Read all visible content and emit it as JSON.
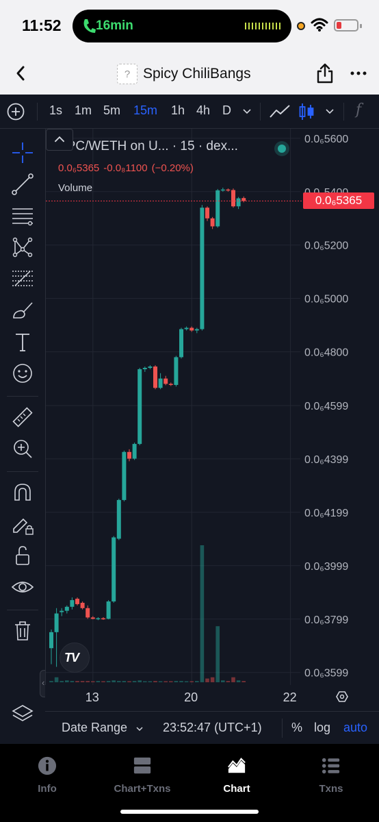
{
  "status_bar": {
    "time": "11:52",
    "call_duration": "16min",
    "colors": {
      "call_green": "#3ddc6f",
      "battery_low": "#e5393e"
    }
  },
  "nav": {
    "title": "Spicy ChiliBangs",
    "token_icon_glyph": "?"
  },
  "toolbar": {
    "intervals": [
      {
        "label": "1s",
        "active": false
      },
      {
        "label": "1m",
        "active": false
      },
      {
        "label": "5m",
        "active": false
      },
      {
        "label": "15m",
        "active": true
      },
      {
        "label": "1h",
        "active": false
      },
      {
        "label": "4h",
        "active": false
      },
      {
        "label": "D",
        "active": false
      }
    ],
    "fx_label": "f",
    "icons": [
      "plus-circle-icon",
      "chevron-down-icon",
      "line-chart-icon",
      "candlestick-icon",
      "fx-icon"
    ]
  },
  "left_tools": {
    "icons": [
      "crosshair-icon",
      "trend-line-icon",
      "horizontal-lines-icon",
      "pattern-icon",
      "fib-icon",
      "brush-icon",
      "text-icon",
      "emoji-icon",
      "ruler-icon",
      "zoom-in-icon",
      "magnet-icon",
      "lock-drawing-icon",
      "unlock-icon",
      "eye-icon",
      "trash-icon",
      "layers-icon"
    ]
  },
  "legend": {
    "symbol": "SPC/WETH on U... · 15 · dex...",
    "last_price": "0.0₆5365",
    "change": "-0.0₈1100",
    "change_pct": "(−0.20%)",
    "volume_label": "Volume"
  },
  "price_tag": "0.0₆5365",
  "bottom_bar": {
    "date_range": "Date Range",
    "clock": "23:52:47 (UTC+1)",
    "percent": "%",
    "log": "log",
    "auto": "auto"
  },
  "tabs": [
    {
      "label": "Info",
      "active": false
    },
    {
      "label": "Chart+Txns",
      "active": false
    },
    {
      "label": "Chart",
      "active": true
    },
    {
      "label": "Txns",
      "active": false
    }
  ],
  "colors": {
    "bg": "#131722",
    "up": "#26a69a",
    "down": "#ef5350",
    "accent": "#2962ff",
    "price_line": "#f23645"
  },
  "chart_data": {
    "type": "candlestick",
    "title": "SPC/WETH on U... · 15 · dex...",
    "price_scale_unit": "×1e-7",
    "y_ticks": [
      {
        "label": "0.0₆5600",
        "value": 5600
      },
      {
        "label": "0.0₆5400",
        "value": 5400
      },
      {
        "label": "0.0₆5200",
        "value": 5200
      },
      {
        "label": "0.0₆5000",
        "value": 5000
      },
      {
        "label": "0.0₆4800",
        "value": 4800
      },
      {
        "label": "0.0₆4599",
        "value": 4599
      },
      {
        "label": "0.0₆4399",
        "value": 4399
      },
      {
        "label": "0.0₆4199",
        "value": 4199
      },
      {
        "label": "0.0₆3999",
        "value": 3999
      },
      {
        "label": "0.0₆3799",
        "value": 3799
      },
      {
        "label": "0.0₆3599",
        "value": 3599
      }
    ],
    "x_ticks": [
      "13",
      "20",
      "22"
    ],
    "x_tick_index": [
      8,
      27,
      46
    ],
    "ylim": [
      3570,
      5615
    ],
    "last_price": 5365,
    "candles": [
      {
        "o": 3690,
        "h": 3760,
        "l": 3630,
        "c": 3750
      },
      {
        "o": 3750,
        "h": 3840,
        "l": 3620,
        "c": 3820
      },
      {
        "o": 3825,
        "h": 3840,
        "l": 3810,
        "c": 3830
      },
      {
        "o": 3830,
        "h": 3850,
        "l": 3820,
        "c": 3845
      },
      {
        "o": 3845,
        "h": 3880,
        "l": 3835,
        "c": 3870
      },
      {
        "o": 3875,
        "h": 3880,
        "l": 3850,
        "c": 3855
      },
      {
        "o": 3860,
        "h": 3865,
        "l": 3835,
        "c": 3840
      },
      {
        "o": 3840,
        "h": 3850,
        "l": 3800,
        "c": 3805
      },
      {
        "o": 3805,
        "h": 3810,
        "l": 3798,
        "c": 3800
      },
      {
        "o": 3800,
        "h": 3806,
        "l": 3795,
        "c": 3802
      },
      {
        "o": 3802,
        "h": 3806,
        "l": 3796,
        "c": 3800
      },
      {
        "o": 3800,
        "h": 3870,
        "l": 3798,
        "c": 3865
      },
      {
        "o": 3865,
        "h": 4110,
        "l": 3860,
        "c": 4105
      },
      {
        "o": 4100,
        "h": 4250,
        "l": 4095,
        "c": 4245
      },
      {
        "o": 4245,
        "h": 4430,
        "l": 4240,
        "c": 4425
      },
      {
        "o": 4425,
        "h": 4435,
        "l": 4390,
        "c": 4400
      },
      {
        "o": 4400,
        "h": 4460,
        "l": 4395,
        "c": 4455
      },
      {
        "o": 4455,
        "h": 4740,
        "l": 4450,
        "c": 4735
      },
      {
        "o": 4735,
        "h": 4745,
        "l": 4725,
        "c": 4740
      },
      {
        "o": 4740,
        "h": 4750,
        "l": 4735,
        "c": 4745
      },
      {
        "o": 4745,
        "h": 4750,
        "l": 4660,
        "c": 4665
      },
      {
        "o": 4665,
        "h": 4720,
        "l": 4660,
        "c": 4700
      },
      {
        "o": 4700,
        "h": 4710,
        "l": 4675,
        "c": 4680
      },
      {
        "o": 4680,
        "h": 4685,
        "l": 4672,
        "c": 4676
      },
      {
        "o": 4676,
        "h": 4785,
        "l": 4670,
        "c": 4780
      },
      {
        "o": 4780,
        "h": 4890,
        "l": 4775,
        "c": 4885
      },
      {
        "o": 4885,
        "h": 4895,
        "l": 4880,
        "c": 4890
      },
      {
        "o": 4890,
        "h": 4895,
        "l": 4875,
        "c": 4880
      },
      {
        "o": 4880,
        "h": 4890,
        "l": 4870,
        "c": 4885
      },
      {
        "o": 4885,
        "h": 5350,
        "l": 4880,
        "c": 5340
      },
      {
        "o": 5340,
        "h": 5345,
        "l": 5290,
        "c": 5300
      },
      {
        "o": 5300,
        "h": 5305,
        "l": 5260,
        "c": 5270
      },
      {
        "o": 5270,
        "h": 5410,
        "l": 5265,
        "c": 5405
      },
      {
        "o": 5405,
        "h": 5415,
        "l": 5400,
        "c": 5408
      },
      {
        "o": 5408,
        "h": 5412,
        "l": 5400,
        "c": 5406
      },
      {
        "o": 5406,
        "h": 5412,
        "l": 5340,
        "c": 5345
      },
      {
        "o": 5345,
        "h": 5380,
        "l": 5335,
        "c": 5375
      },
      {
        "o": 5376,
        "h": 5382,
        "l": 5360,
        "c": 5365
      }
    ],
    "volume": [
      2,
      8,
      2,
      3,
      2,
      2,
      2,
      2,
      1,
      2,
      1,
      2,
      3,
      2,
      2,
      1,
      2,
      3,
      1,
      1,
      2,
      1,
      1,
      1,
      2,
      2,
      1,
      1,
      2,
      220,
      6,
      8,
      90,
      3,
      2,
      8,
      3,
      2
    ],
    "ylabel": "",
    "xlabel": ""
  }
}
